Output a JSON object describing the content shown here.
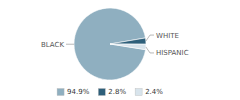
{
  "chart_data": {
    "type": "pie",
    "categories": [
      "BLACK",
      "WHITE",
      "HISPANIC"
    ],
    "values": [
      94.9,
      2.8,
      2.4
    ],
    "value_labels": [
      "94.9%",
      "2.8%",
      "2.4%"
    ],
    "colors": [
      "#8FAFC0",
      "#2E5F7A",
      "#D8E4EC"
    ],
    "legend": "bottom"
  }
}
